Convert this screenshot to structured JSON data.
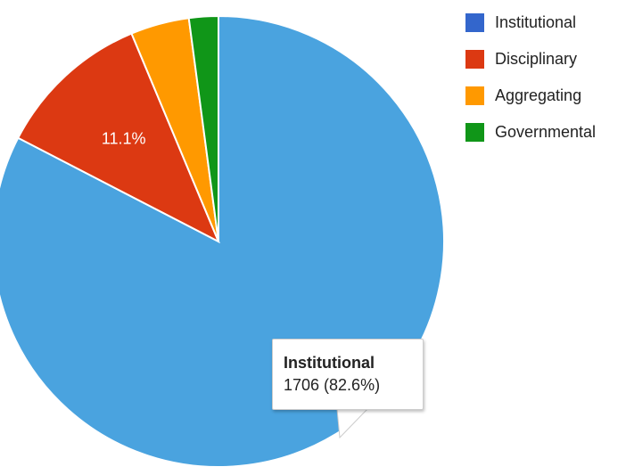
{
  "chart_data": {
    "type": "pie",
    "categories": [
      "Institutional",
      "Disciplinary",
      "Aggregating",
      "Governmental"
    ],
    "values": [
      82.6,
      11.1,
      4.2,
      2.1
    ],
    "colors": [
      "#4aa3df",
      "#dc3912",
      "#ff9900",
      "#109618"
    ],
    "legend_colors": [
      "#3366cc",
      "#dc3912",
      "#ff9900",
      "#109618"
    ],
    "slice_labels": [
      "",
      "11.1%",
      "",
      ""
    ],
    "legend": {
      "position": "right",
      "items": [
        {
          "label": "Institutional",
          "color": "#3366cc"
        },
        {
          "label": "Disciplinary",
          "color": "#dc3912"
        },
        {
          "label": "Aggregating",
          "color": "#ff9900"
        },
        {
          "label": "Governmental",
          "color": "#109618"
        }
      ]
    },
    "tooltip": {
      "title": "Institutional",
      "value": "1706 (82.6%)"
    }
  }
}
